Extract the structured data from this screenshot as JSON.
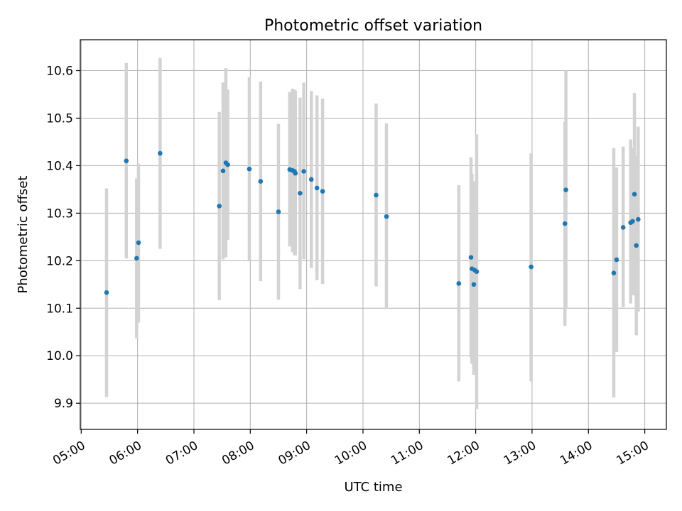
{
  "chart_data": {
    "type": "scatter",
    "title": "Photometric offset variation",
    "xlabel": "UTC time",
    "ylabel": "Photometric offset",
    "grid": true,
    "xlim": [
      "04:59",
      "15:23"
    ],
    "ylim": [
      9.845,
      10.665
    ],
    "x_ticks": [
      "05:00",
      "06:00",
      "07:00",
      "08:00",
      "09:00",
      "10:00",
      "11:00",
      "12:00",
      "13:00",
      "14:00",
      "15:00"
    ],
    "y_ticks": [
      9.9,
      10.0,
      10.1,
      10.2,
      10.3,
      10.4,
      10.5,
      10.6
    ],
    "y_tick_labels": [
      "9.9",
      "10.0",
      "10.1",
      "10.2",
      "10.3",
      "10.4",
      "10.5",
      "10.6"
    ],
    "colors": {
      "points": "#1f77b4",
      "errorbars": "#d3d3d3",
      "grid": "#b0b0b0"
    },
    "points": [
      {
        "x": "05:27",
        "y": 10.133,
        "lo": 9.913,
        "hi": 10.352
      },
      {
        "x": "05:48",
        "y": 10.41,
        "lo": 10.205,
        "hi": 10.616
      },
      {
        "x": "05:59",
        "y": 10.205,
        "lo": 10.037,
        "hi": 10.373
      },
      {
        "x": "06:01",
        "y": 10.238,
        "lo": 10.07,
        "hi": 10.404
      },
      {
        "x": "06:24",
        "y": 10.426,
        "lo": 10.225,
        "hi": 10.627
      },
      {
        "x": "07:27",
        "y": 10.315,
        "lo": 10.117,
        "hi": 10.513
      },
      {
        "x": "07:31",
        "y": 10.389,
        "lo": 10.203,
        "hi": 10.575
      },
      {
        "x": "07:34",
        "y": 10.406,
        "lo": 10.207,
        "hi": 10.605
      },
      {
        "x": "07:36",
        "y": 10.402,
        "lo": 10.244,
        "hi": 10.56
      },
      {
        "x": "07:59",
        "y": 10.393,
        "lo": 10.2,
        "hi": 10.586
      },
      {
        "x": "08:11",
        "y": 10.367,
        "lo": 10.157,
        "hi": 10.577
      },
      {
        "x": "08:30",
        "y": 10.303,
        "lo": 10.118,
        "hi": 10.488
      },
      {
        "x": "08:42",
        "y": 10.392,
        "lo": 10.23,
        "hi": 10.555
      },
      {
        "x": "08:45",
        "y": 10.39,
        "lo": 10.218,
        "hi": 10.562
      },
      {
        "x": "08:47",
        "y": 10.388,
        "lo": 10.212,
        "hi": 10.56
      },
      {
        "x": "08:48",
        "y": 10.384,
        "lo": 10.211,
        "hi": 10.557
      },
      {
        "x": "08:53",
        "y": 10.342,
        "lo": 10.14,
        "hi": 10.543
      },
      {
        "x": "08:57",
        "y": 10.388,
        "lo": 10.203,
        "hi": 10.575
      },
      {
        "x": "09:05",
        "y": 10.371,
        "lo": 10.185,
        "hi": 10.557
      },
      {
        "x": "09:11",
        "y": 10.353,
        "lo": 10.159,
        "hi": 10.548
      },
      {
        "x": "09:17",
        "y": 10.346,
        "lo": 10.151,
        "hi": 10.541
      },
      {
        "x": "10:14",
        "y": 10.338,
        "lo": 10.146,
        "hi": 10.531
      },
      {
        "x": "10:25",
        "y": 10.293,
        "lo": 10.098,
        "hi": 10.489
      },
      {
        "x": "11:42",
        "y": 10.152,
        "lo": 9.946,
        "hi": 10.359
      },
      {
        "x": "11:55",
        "y": 10.207,
        "lo": 9.997,
        "hi": 10.418
      },
      {
        "x": "11:56",
        "y": 10.183,
        "lo": 9.983,
        "hi": 10.383
      },
      {
        "x": "11:58",
        "y": 10.15,
        "lo": 9.96,
        "hi": 10.34
      },
      {
        "x": "11:59",
        "y": 10.18,
        "lo": 9.993,
        "hi": 10.367
      },
      {
        "x": "12:01",
        "y": 10.177,
        "lo": 9.888,
        "hi": 10.466
      },
      {
        "x": "12:59",
        "y": 10.187,
        "lo": 9.946,
        "hi": 10.426
      },
      {
        "x": "13:35",
        "y": 10.278,
        "lo": 10.063,
        "hi": 10.492
      },
      {
        "x": "13:36",
        "y": 10.349,
        "lo": 10.1,
        "hi": 10.6
      },
      {
        "x": "14:27",
        "y": 10.174,
        "lo": 9.912,
        "hi": 10.437
      },
      {
        "x": "14:30",
        "y": 10.202,
        "lo": 10.008,
        "hi": 10.396
      },
      {
        "x": "14:37",
        "y": 10.27,
        "lo": 10.102,
        "hi": 10.44
      },
      {
        "x": "14:45",
        "y": 10.28,
        "lo": 10.11,
        "hi": 10.455
      },
      {
        "x": "14:47",
        "y": 10.283,
        "lo": 10.128,
        "hi": 10.437
      },
      {
        "x": "14:49",
        "y": 10.34,
        "lo": 10.127,
        "hi": 10.553
      },
      {
        "x": "14:51",
        "y": 10.232,
        "lo": 10.043,
        "hi": 10.42
      },
      {
        "x": "14:53",
        "y": 10.287,
        "lo": 10.093,
        "hi": 10.482
      }
    ]
  }
}
